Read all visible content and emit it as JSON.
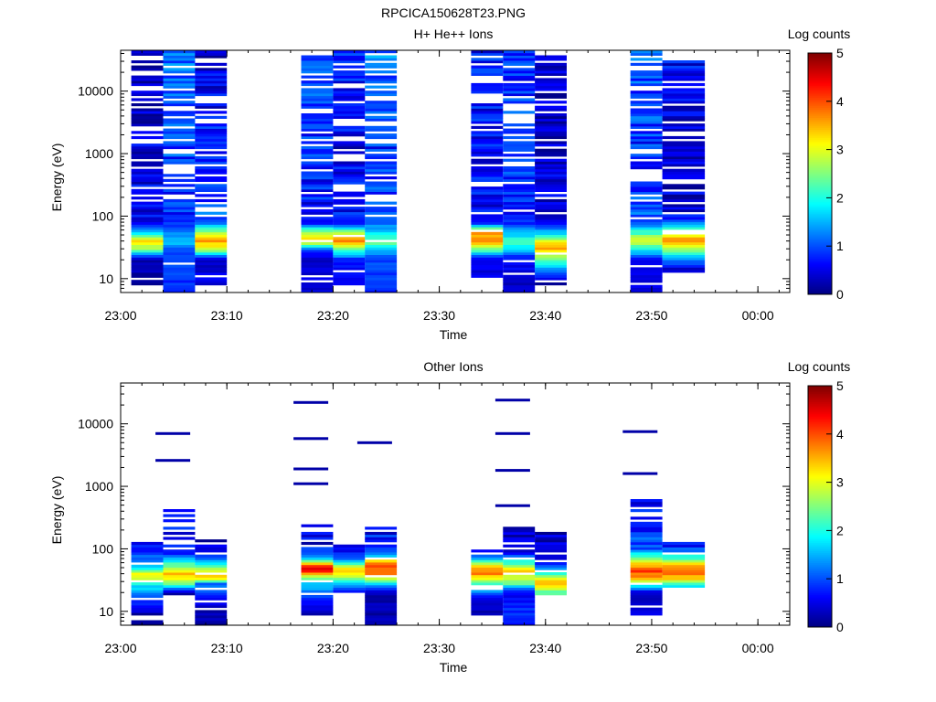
{
  "figure": {
    "title": "RPCICA150628T23.PNG"
  },
  "chart_data": [
    {
      "type": "heatmap",
      "title": "H+ He++ Ions",
      "xlabel": "Time",
      "ylabel": "Energy (eV)",
      "xlim": [
        "23:00",
        "00:03"
      ],
      "ylim": [
        6,
        45000
      ],
      "yscale": "log",
      "x_ticks": [
        "23:00",
        "23:10",
        "23:20",
        "23:30",
        "23:40",
        "23:50",
        "00:00"
      ],
      "y_ticks": [
        "10",
        "100",
        "1000",
        "10000"
      ],
      "colorbar": {
        "label": "Log counts",
        "min": 0,
        "max": 5,
        "ticks": [
          "0",
          "1",
          "2",
          "3",
          "4",
          "5"
        ]
      },
      "columns": [
        {
          "start": "23:01",
          "end": "23:04",
          "profile": [
            [
              9,
              0.2
            ],
            [
              20,
              0.3
            ],
            [
              30,
              2.6
            ],
            [
              40,
              3.4
            ],
            [
              55,
              1.8
            ],
            [
              80,
              0.5
            ],
            [
              44000,
              0.3
            ]
          ]
        },
        {
          "start": "23:04",
          "end": "23:07",
          "profile": [
            [
              6,
              0.8
            ],
            [
              20,
              1.0
            ],
            [
              30,
              1.1
            ],
            [
              40,
              1.6
            ],
            [
              55,
              1.3
            ],
            [
              80,
              0.8
            ],
            [
              1000,
              0.9
            ],
            [
              44000,
              1.2
            ]
          ]
        },
        {
          "start": "23:07",
          "end": "23:10",
          "profile": [
            [
              9,
              0.5
            ],
            [
              20,
              0.4
            ],
            [
              30,
              2.8
            ],
            [
              40,
              3.6
            ],
            [
              55,
              2.8
            ],
            [
              80,
              1.0
            ],
            [
              44000,
              0.4
            ]
          ]
        },
        {
          "start": "23:17",
          "end": "23:20",
          "profile": [
            [
              6,
              0.5
            ],
            [
              20,
              0.4
            ],
            [
              30,
              1.0
            ],
            [
              40,
              3.5
            ],
            [
              55,
              2.9
            ],
            [
              80,
              0.6
            ],
            [
              1000,
              0.8
            ],
            [
              44000,
              1.0
            ]
          ]
        },
        {
          "start": "23:20",
          "end": "23:23",
          "profile": [
            [
              9,
              0.5
            ],
            [
              20,
              0.7
            ],
            [
              30,
              2.4
            ],
            [
              40,
              3.9
            ],
            [
              55,
              2.6
            ],
            [
              80,
              0.7
            ],
            [
              1000,
              0.5
            ],
            [
              44000,
              0.7
            ]
          ]
        },
        {
          "start": "23:23",
          "end": "23:26",
          "profile": [
            [
              6,
              0.8
            ],
            [
              20,
              1.0
            ],
            [
              30,
              1.6
            ],
            [
              40,
              2.5
            ],
            [
              55,
              1.8
            ],
            [
              80,
              1.0
            ],
            [
              1000,
              0.8
            ],
            [
              44000,
              1.2
            ]
          ]
        },
        {
          "start": "23:33",
          "end": "23:36",
          "profile": [
            [
              12,
              0.5
            ],
            [
              20,
              0.5
            ],
            [
              30,
              2.4
            ],
            [
              40,
              3.8
            ],
            [
              55,
              3.5
            ],
            [
              80,
              0.6
            ],
            [
              1000,
              0.6
            ],
            [
              44000,
              0.7
            ]
          ]
        },
        {
          "start": "23:36",
          "end": "23:39",
          "profile": [
            [
              6,
              0.3
            ],
            [
              20,
              0.6
            ],
            [
              30,
              1.6
            ],
            [
              40,
              2.3
            ],
            [
              55,
              1.5
            ],
            [
              80,
              0.8
            ],
            [
              1000,
              0.8
            ],
            [
              44000,
              0.9
            ]
          ]
        },
        {
          "start": "23:39",
          "end": "23:42",
          "profile": [
            [
              9,
              0.2
            ],
            [
              20,
              2.2
            ],
            [
              30,
              3.5
            ],
            [
              40,
              3.0
            ],
            [
              55,
              1.6
            ],
            [
              80,
              0.5
            ],
            [
              1000,
              0.3
            ],
            [
              38000,
              0.4
            ]
          ]
        },
        {
          "start": "23:48",
          "end": "23:51",
          "profile": [
            [
              6,
              0.4
            ],
            [
              20,
              0.6
            ],
            [
              30,
              2.0
            ],
            [
              40,
              3.0
            ],
            [
              55,
              2.2
            ],
            [
              80,
              1.0
            ],
            [
              1000,
              0.8
            ],
            [
              44000,
              1.1
            ]
          ]
        },
        {
          "start": "23:51",
          "end": "23:55",
          "profile": [
            [
              14,
              0.3
            ],
            [
              25,
              2.0
            ],
            [
              30,
              2.6
            ],
            [
              40,
              3.8
            ],
            [
              55,
              2.9
            ],
            [
              70,
              1.5
            ],
            [
              100,
              0.5
            ],
            [
              400,
              0.3
            ],
            [
              33000,
              0.6
            ]
          ]
        }
      ]
    },
    {
      "type": "heatmap",
      "title": "Other Ions",
      "xlabel": "Time",
      "ylabel": "Energy (eV)",
      "xlim": [
        "23:00",
        "00:03"
      ],
      "ylim": [
        6,
        45000
      ],
      "yscale": "log",
      "x_ticks": [
        "23:00",
        "23:10",
        "23:20",
        "23:30",
        "23:40",
        "23:50",
        "00:00"
      ],
      "y_ticks": [
        "10",
        "100",
        "1000",
        "10000"
      ],
      "colorbar": {
        "label": "Log counts",
        "min": 0,
        "max": 5,
        "ticks": [
          "0",
          "1",
          "2",
          "3",
          "4",
          "5"
        ]
      },
      "columns": [
        {
          "start": "23:01",
          "end": "23:04",
          "profile": [
            [
              6,
              0.2
            ],
            [
              9,
              0.2
            ],
            [
              26,
              1.8
            ],
            [
              32,
              2.8
            ],
            [
              40,
              3.3
            ],
            [
              50,
              1.8
            ],
            [
              60,
              1.4
            ],
            [
              130,
              0.3
            ]
          ],
          "max_e": 130
        },
        {
          "start": "23:04",
          "end": "23:07",
          "profile": [
            [
              20,
              0.3
            ],
            [
              26,
              2.0
            ],
            [
              32,
              3.0
            ],
            [
              40,
              3.5
            ],
            [
              55,
              2.4
            ],
            [
              90,
              0.6
            ],
            [
              450,
              0.8
            ]
          ],
          "max_e": 7000
        },
        {
          "start": "23:07",
          "end": "23:10",
          "profile": [
            [
              6,
              0.2
            ],
            [
              9,
              0.2
            ],
            [
              28,
              1.2
            ],
            [
              34,
              3.2
            ],
            [
              40,
              3.6
            ],
            [
              55,
              2.0
            ],
            [
              90,
              0.5
            ],
            [
              140,
              0.3
            ]
          ],
          "max_e": 140
        },
        {
          "start": "23:17",
          "end": "23:20",
          "profile": [
            [
              10,
              0.3
            ],
            [
              28,
              1.6
            ],
            [
              36,
              2.8
            ],
            [
              45,
              4.6
            ],
            [
              55,
              4.2
            ],
            [
              70,
              1.5
            ],
            [
              120,
              0.5
            ],
            [
              250,
              0.3
            ]
          ],
          "max_e": 22000
        },
        {
          "start": "23:20",
          "end": "23:23",
          "profile": [
            [
              22,
              0.8
            ],
            [
              30,
              2.0
            ],
            [
              38,
              2.9
            ],
            [
              50,
              3.4
            ],
            [
              70,
              1.0
            ],
            [
              120,
              0.3
            ]
          ],
          "max_e": 120
        },
        {
          "start": "23:23",
          "end": "23:26",
          "profile": [
            [
              6,
              0.2
            ],
            [
              20,
              0.3
            ],
            [
              28,
              1.6
            ],
            [
              36,
              3.6
            ],
            [
              45,
              4.0
            ],
            [
              60,
              3.8
            ],
            [
              80,
              1.2
            ],
            [
              170,
              0.7
            ],
            [
              230,
              0.3
            ]
          ],
          "max_e": 5000
        },
        {
          "start": "23:33",
          "end": "23:36",
          "profile": [
            [
              10,
              0.3
            ],
            [
              14,
              0.3
            ],
            [
              26,
              1.8
            ],
            [
              34,
              3.2
            ],
            [
              42,
              3.8
            ],
            [
              55,
              3.2
            ],
            [
              70,
              1.5
            ],
            [
              95,
              0.4
            ]
          ],
          "max_e": 95
        },
        {
          "start": "23:36",
          "end": "23:39",
          "profile": [
            [
              6,
              0.8
            ],
            [
              10,
              0.8
            ],
            [
              22,
              0.6
            ],
            [
              28,
              2.4
            ],
            [
              36,
              3.0
            ],
            [
              45,
              3.3
            ],
            [
              60,
              2.2
            ],
            [
              90,
              0.5
            ],
            [
              230,
              0.3
            ]
          ],
          "max_e": 24000
        },
        {
          "start": "23:39",
          "end": "23:42",
          "profile": [
            [
              20,
              2.2
            ],
            [
              26,
              3.2
            ],
            [
              32,
              3.4
            ],
            [
              40,
              2.2
            ],
            [
              60,
              0.6
            ],
            [
              190,
              0.3
            ]
          ],
          "max_e": 190
        },
        {
          "start": "23:48",
          "end": "23:51",
          "profile": [
            [
              10,
              0.5
            ],
            [
              20,
              0.3
            ],
            [
              28,
              2.6
            ],
            [
              36,
              3.6
            ],
            [
              45,
              4.1
            ],
            [
              60,
              3.3
            ],
            [
              100,
              1.0
            ],
            [
              600,
              0.6
            ]
          ],
          "max_e": 7500
        },
        {
          "start": "23:51",
          "end": "23:55",
          "profile": [
            [
              26,
              1.8
            ],
            [
              32,
              3.2
            ],
            [
              40,
              3.8
            ],
            [
              55,
              3.4
            ],
            [
              70,
              2.2
            ],
            [
              100,
              1.0
            ],
            [
              140,
              0.3
            ]
          ],
          "max_e": 140
        }
      ],
      "sparse_lines": [
        {
          "time": "23:05",
          "energies": [
            2600,
            7000
          ]
        },
        {
          "time": "23:18",
          "energies": [
            1100,
            1900,
            5800,
            22000
          ]
        },
        {
          "time": "23:24",
          "energies": [
            5000
          ]
        },
        {
          "time": "23:37",
          "energies": [
            490,
            1800,
            7000,
            24000
          ]
        },
        {
          "time": "23:49",
          "energies": [
            1600,
            7500
          ]
        }
      ]
    }
  ]
}
